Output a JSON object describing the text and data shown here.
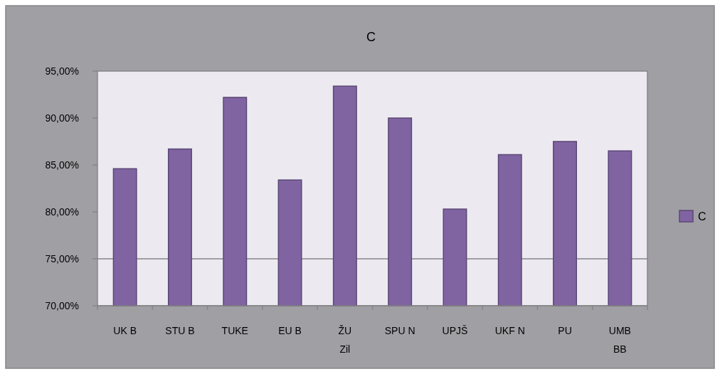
{
  "chart_data": {
    "type": "bar",
    "title": "C",
    "categories": [
      "UK B",
      "STU B",
      "TUKE",
      "EU B",
      "ŽU Zil",
      "SPU N",
      "UPJŠ",
      "UKF N",
      "PU",
      "UMB BB"
    ],
    "series": [
      {
        "name": "C",
        "color": "#8064a2",
        "values": [
          84.6,
          86.7,
          92.2,
          83.4,
          93.4,
          90.0,
          80.3,
          86.1,
          87.5,
          86.5
        ]
      }
    ],
    "ylim": [
      70,
      95
    ],
    "yticks": [
      {
        "value": 70,
        "label": "70,00%"
      },
      {
        "value": 75,
        "label": "75,00%"
      },
      {
        "value": 80,
        "label": "80,00%"
      },
      {
        "value": 85,
        "label": "85,00%"
      },
      {
        "value": 90,
        "label": "90,00%"
      },
      {
        "value": 95,
        "label": "95,00%"
      }
    ],
    "ref_lines": [
      {
        "axis": "y",
        "value": 75,
        "color": "#868686"
      }
    ],
    "legend": "right"
  }
}
